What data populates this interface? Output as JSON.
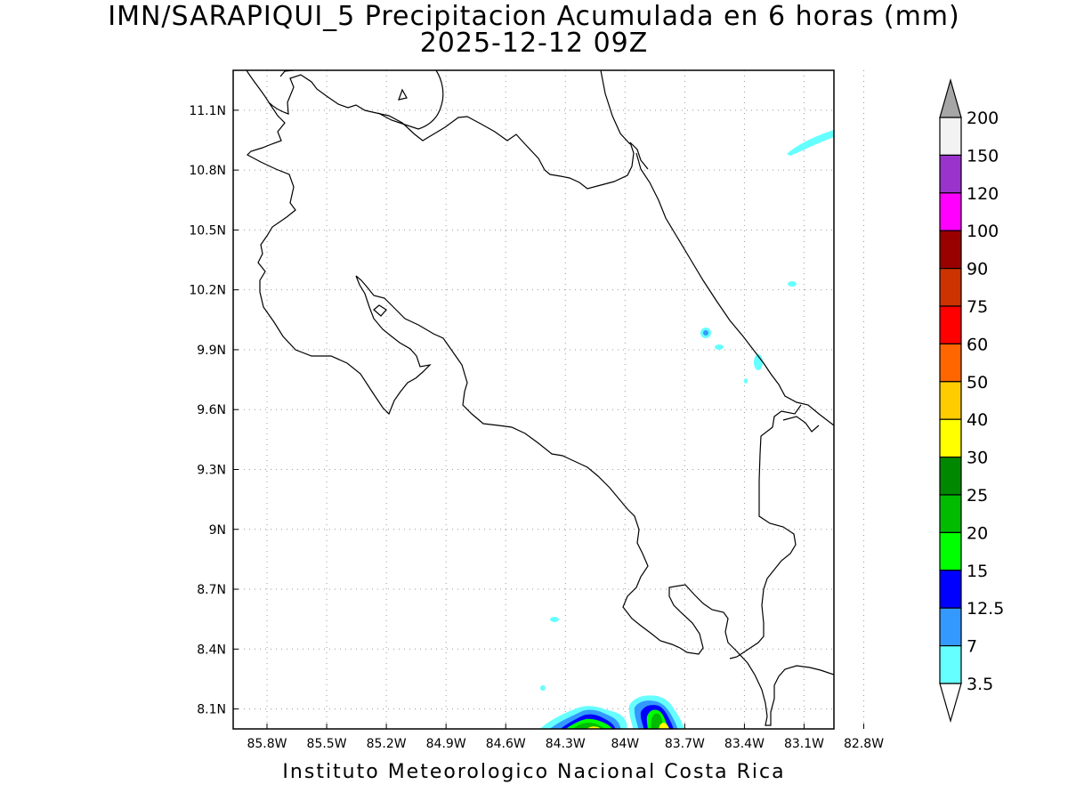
{
  "title": {
    "line1": "IMN/SARAPIQUI_5 Precipitacion Acumulada en 6 horas (mm)",
    "line2": "2025-12-12 09Z"
  },
  "footer": "Instituto Meteorologico Nacional Costa Rica",
  "map": {
    "lat_labels": [
      "11.1N",
      "10.8N",
      "10.5N",
      "10.2N",
      "9.9N",
      "9.6N",
      "9.3N",
      "9N",
      "8.7N",
      "8.4N",
      "8.1N"
    ],
    "lon_labels": [
      "85.8W",
      "85.5W",
      "85.2W",
      "84.9W",
      "84.6W",
      "84.3W",
      "84W",
      "83.7W",
      "83.4W",
      "83.1W",
      "82.8W"
    ],
    "lat_range": [
      8.0,
      11.3
    ],
    "lon_range": [
      -85.97,
      -82.95
    ]
  },
  "colorbar": {
    "levels": [
      "200",
      "150",
      "120",
      "100",
      "90",
      "75",
      "60",
      "50",
      "40",
      "30",
      "25",
      "20",
      "15",
      "12.5",
      "7",
      "3.5"
    ],
    "colors": [
      "#a6a6a6",
      "#f2f2f2",
      "#9933cc",
      "#ff00ff",
      "#990000",
      "#cc3300",
      "#ff0000",
      "#ff6600",
      "#ffcc00",
      "#ffff00",
      "#008800",
      "#00bb00",
      "#00ff00",
      "#0000ff",
      "#3399ff",
      "#66ffff",
      "#ffffff"
    ]
  },
  "precip_colors": {
    "c3_5": "#66ffff",
    "c7": "#3399ff",
    "c12_5": "#0000ff",
    "c15": "#00ff00",
    "c20": "#00bb00",
    "c25": "#008800",
    "c30": "#ffff00"
  }
}
